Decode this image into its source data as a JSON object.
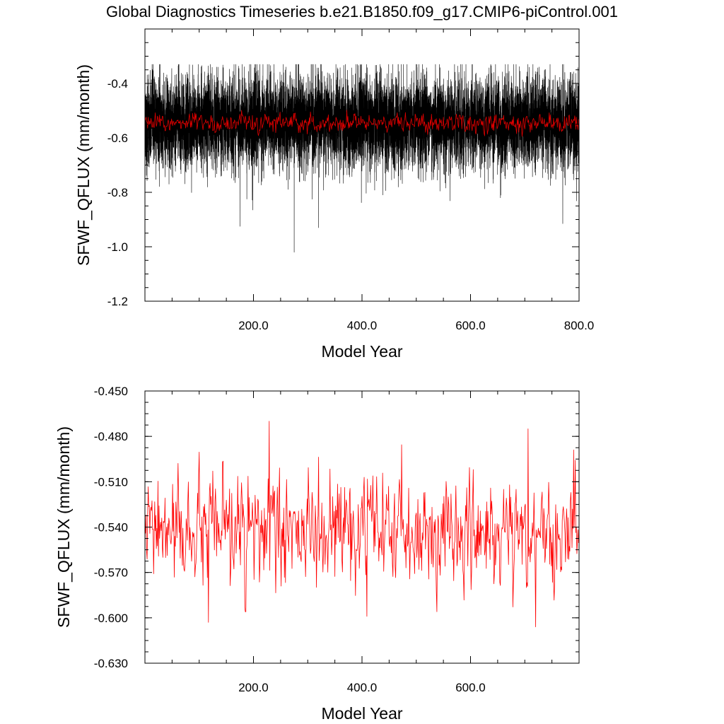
{
  "figure_title": "Global Diagnostics Timeseries b.e21.B1850.f09_g17.CMIP6-piControl.001",
  "chart_data": [
    {
      "type": "line",
      "ylabel": "SFWF_QFLUX (mm/month)",
      "xlabel": "Model Year",
      "xlim": [
        0,
        800
      ],
      "ylim": [
        -1.2,
        -0.2
      ],
      "x_ticks": [
        200,
        400,
        600,
        800
      ],
      "x_tick_labels": [
        "200.0",
        "400.0",
        "600.0",
        "800.0"
      ],
      "y_ticks": [
        -1.2,
        -1.0,
        -0.8,
        -0.6,
        -0.4
      ],
      "y_tick_labels": [
        "-1.2",
        "-1.0",
        "-0.8",
        "-0.6",
        "-0.4"
      ],
      "grid": false,
      "series": [
        {
          "style": "monthly",
          "color": "#000000",
          "mean": -0.545,
          "range": [
            -1.02,
            -0.33
          ],
          "anomalies": [
            {
              "x": 175,
              "y": -0.925
            },
            {
              "x": 275,
              "y": -1.02
            },
            {
              "x": 320,
              "y": -0.93
            },
            {
              "x": 770,
              "y": -0.915
            }
          ]
        },
        {
          "style": "annual",
          "color": "#e00000",
          "mean": -0.545,
          "range": [
            -0.605,
            -0.47
          ]
        }
      ]
    },
    {
      "type": "line",
      "ylabel": "SFWF_QFLUX (mm/month)",
      "xlabel": "Model Year",
      "xlim": [
        0,
        800
      ],
      "ylim": [
        -0.63,
        -0.45
      ],
      "x_ticks": [
        200,
        400,
        600
      ],
      "x_tick_labels": [
        "200.0",
        "400.0",
        "600.0"
      ],
      "y_ticks": [
        -0.63,
        -0.6,
        -0.57,
        -0.54,
        -0.51,
        -0.48,
        -0.45
      ],
      "y_tick_labels": [
        "-0.630",
        "-0.600",
        "-0.570",
        "-0.540",
        "-0.510",
        "-0.480",
        "-0.450"
      ],
      "grid": false,
      "series": [
        {
          "style": "annual",
          "color": "#ff0000",
          "mean": -0.544,
          "range": [
            -0.606,
            -0.47
          ],
          "anomalies": [
            {
              "x": 117,
              "y": -0.603
            },
            {
              "x": 229,
              "y": -0.47
            },
            {
              "x": 409,
              "y": -0.599
            },
            {
              "x": 706,
              "y": -0.475
            },
            {
              "x": 720,
              "y": -0.606
            },
            {
              "x": 790,
              "y": -0.489
            }
          ]
        }
      ]
    }
  ]
}
